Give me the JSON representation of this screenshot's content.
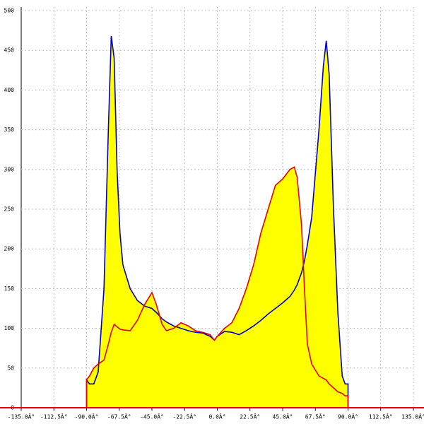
{
  "chart_data": {
    "type": "line",
    "x": [
      -90,
      -88,
      -85,
      -82,
      -78,
      -75,
      -73,
      -71,
      -69,
      -67,
      -65,
      -60,
      -55,
      -50,
      -45,
      -42,
      -38,
      -35,
      -30,
      -25,
      -20,
      -15,
      -10,
      -5,
      -2,
      0,
      5,
      10,
      15,
      20,
      25,
      30,
      35,
      40,
      45,
      50,
      53,
      55,
      58,
      60,
      62,
      65,
      70,
      73,
      75,
      77,
      80,
      83,
      86,
      88,
      90
    ],
    "series": [
      {
        "color": "#0000cc",
        "values": [
          35,
          30,
          30,
          45,
          150,
          350,
          468,
          440,
          300,
          220,
          180,
          150,
          135,
          128,
          125,
          120,
          112,
          108,
          103,
          100,
          97,
          95,
          94,
          90,
          85,
          90,
          96,
          95,
          92,
          97,
          103,
          110,
          118,
          125,
          132,
          140,
          148,
          155,
          170,
          185,
          205,
          240,
          350,
          430,
          462,
          420,
          250,
          120,
          40,
          30,
          30
        ]
      },
      {
        "color": "#ee0000",
        "values": [
          35,
          40,
          50,
          55,
          60,
          80,
          95,
          105,
          102,
          99,
          98,
          97,
          110,
          130,
          145,
          130,
          105,
          97,
          100,
          107,
          103,
          97,
          95,
          92,
          85,
          90,
          100,
          107,
          125,
          150,
          180,
          220,
          250,
          280,
          288,
          300,
          303,
          290,
          230,
          150,
          80,
          55,
          40,
          37,
          35,
          30,
          25,
          20,
          18,
          15,
          15
        ]
      }
    ],
    "fill_color": "#ffff00",
    "xlim": [
      -135,
      135
    ],
    "xticks": [
      {
        "value": -135,
        "label": "-135.0Â°"
      },
      {
        "value": -112.5,
        "label": "-112.5Â°"
      },
      {
        "value": -90,
        "label": "-90.0Â°"
      },
      {
        "value": -67.5,
        "label": "-67.5Â°"
      },
      {
        "value": -45,
        "label": "-45.0Â°"
      },
      {
        "value": -22.5,
        "label": "-22.5Â°"
      },
      {
        "value": 0,
        "label": "0.0Â°"
      },
      {
        "value": 22.5,
        "label": "22.5Â°"
      },
      {
        "value": 45,
        "label": "45.0Â°"
      },
      {
        "value": 67.5,
        "label": "67.5Â°"
      },
      {
        "value": 90,
        "label": "90.0Â°"
      },
      {
        "value": 112.5,
        "label": "112.5Â°"
      },
      {
        "value": 135,
        "label": "135.0Â°"
      }
    ],
    "ylim": [
      0,
      500
    ],
    "yticks": [
      0,
      50,
      100,
      150,
      200,
      250,
      300,
      350,
      400,
      450,
      500
    ],
    "grid": true
  }
}
